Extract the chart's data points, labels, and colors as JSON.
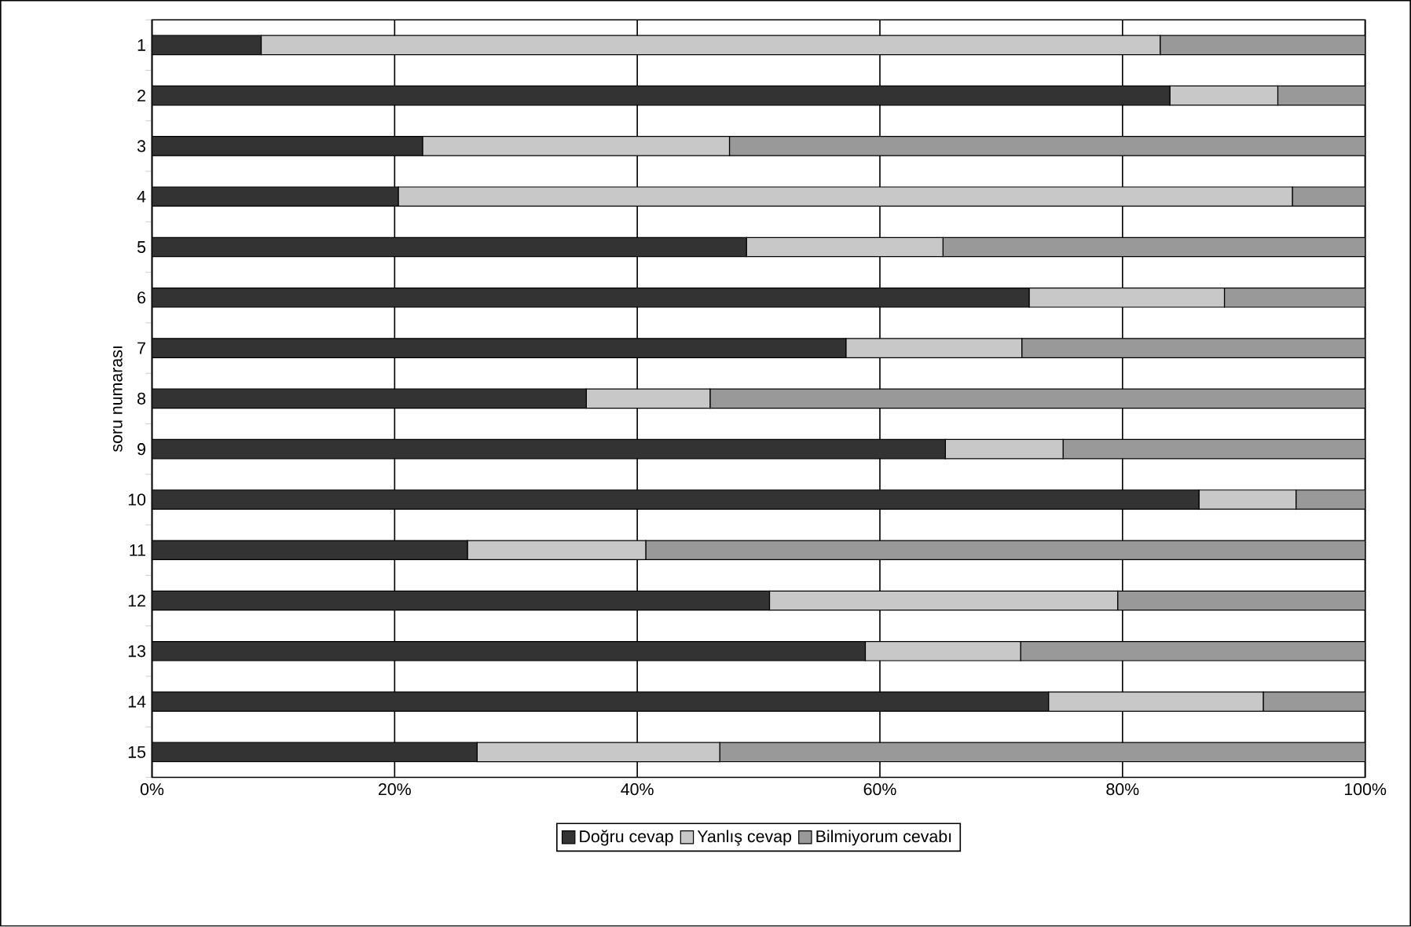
{
  "chart_data": {
    "type": "bar",
    "orientation": "horizontal",
    "stacked": true,
    "ylabel": "soru numarası",
    "categories": [
      "1",
      "2",
      "3",
      "4",
      "5",
      "6",
      "7",
      "8",
      "9",
      "10",
      "11",
      "12",
      "13",
      "14",
      "15"
    ],
    "series": [
      {
        "name": "Doğru cevap",
        "color": "#333333",
        "values": [
          9.0,
          83.9,
          22.3,
          20.3,
          49.0,
          72.3,
          57.2,
          35.8,
          65.4,
          86.3,
          26.0,
          50.9,
          58.8,
          73.9,
          26.8
        ]
      },
      {
        "name": "Yanlış cevap",
        "color": "#c8c8c8",
        "values": [
          74.1,
          8.9,
          25.3,
          73.7,
          16.2,
          16.1,
          14.5,
          10.2,
          9.7,
          8.0,
          14.7,
          28.7,
          12.8,
          17.7,
          20.0
        ]
      },
      {
        "name": "Bilmiyorum cevabı",
        "color": "#999999",
        "values": [
          16.9,
          7.2,
          52.4,
          6.0,
          34.8,
          11.6,
          28.3,
          54.0,
          24.9,
          5.7,
          59.3,
          20.4,
          28.4,
          8.4,
          53.2
        ]
      }
    ],
    "xlim": [
      0,
      100
    ],
    "xticks": [
      {
        "value": 0,
        "label": "0%"
      },
      {
        "value": 20,
        "label": "20%"
      },
      {
        "value": 40,
        "label": "40%"
      },
      {
        "value": 60,
        "label": "60%"
      },
      {
        "value": 80,
        "label": "80%"
      },
      {
        "value": 100,
        "label": "100%"
      }
    ],
    "grid": "x",
    "legend": "bottom"
  }
}
